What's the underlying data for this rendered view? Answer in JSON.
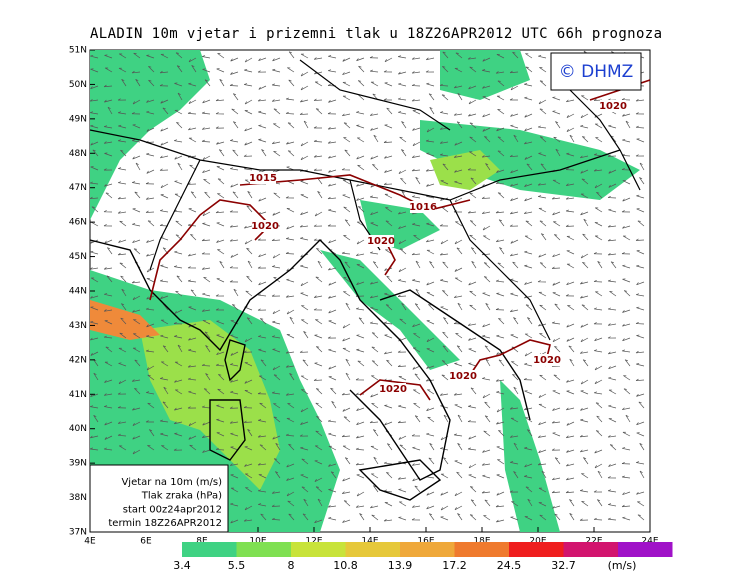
{
  "title": "ALADIN 10m vjetar i prizemni tlak u 18Z26APR2012 UTC 66h prognoza",
  "logo": "© DHMZ",
  "lat_labels": [
    "51N",
    "50N",
    "49N",
    "48N",
    "47N",
    "46N",
    "45N",
    "44N",
    "43N",
    "42N",
    "41N",
    "40N",
    "39N",
    "38N",
    "37N"
  ],
  "lon_labels": [
    "4E",
    "6E",
    "8E",
    "10E",
    "12E",
    "14E",
    "16E",
    "18E",
    "20E",
    "22E",
    "24E"
  ],
  "isobar_labels": [
    "1020",
    "1015",
    "1020",
    "1016",
    "1020",
    "1020",
    "1020",
    "1020"
  ],
  "info_box": [
    "Vjetar na 10m (m/s)",
    "Tlak zraka (hPa)",
    "start 00z24apr2012",
    "termin 18Z26APR2012"
  ],
  "colorbar": {
    "labels": [
      "3.4",
      "5.5",
      "8",
      "10.8",
      "13.9",
      "17.2",
      "24.5",
      "32.7"
    ],
    "unit": "(m/s)"
  }
}
